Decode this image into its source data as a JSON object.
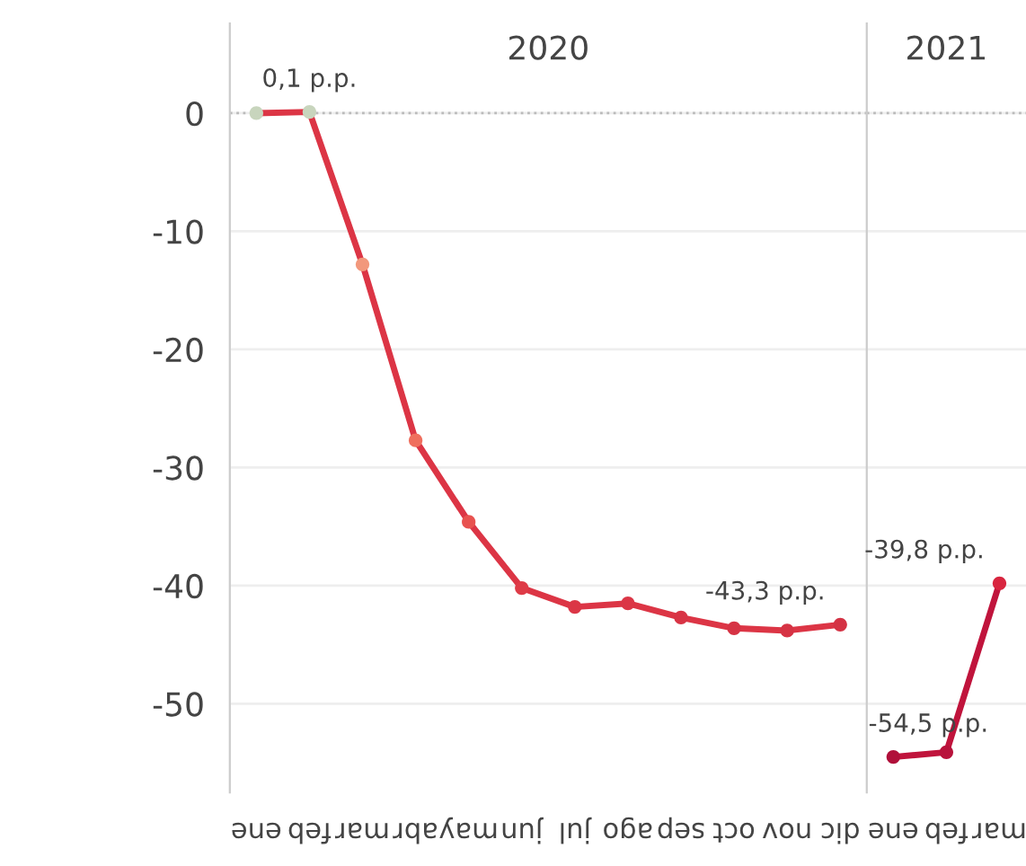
{
  "chart_data": [
    {
      "type": "line",
      "title": "2020",
      "categories": [
        "ene",
        "feb",
        "mar",
        "abr",
        "may",
        "jun",
        "jul",
        "ago",
        "sep",
        "oct",
        "nov",
        "dic"
      ],
      "series": [
        {
          "color": "#dc3545",
          "colors": [
            "#c8d5bd",
            "#c8d5bd",
            "#f2987c",
            "#ef6f5e",
            "#e8524f",
            "#de3b47",
            "#db3646",
            "#db3646",
            "#d83445",
            "#d63344",
            "#d63344",
            "#d43244"
          ],
          "values": [
            0.0,
            0.1,
            -12.8,
            -27.7,
            -34.6,
            -40.2,
            -41.8,
            -41.5,
            -42.7,
            -43.6,
            -43.8,
            -43.3
          ],
          "value_labels": [
            null,
            "0,1 p.p.",
            null,
            null,
            null,
            null,
            null,
            null,
            null,
            null,
            null,
            "-43,3 p.p."
          ]
        }
      ],
      "ylim": [
        -57.5,
        7.6
      ],
      "yticks": [
        0,
        -10,
        -20,
        -30,
        -40,
        -50
      ],
      "grid": "y",
      "ref_lines": [
        {
          "axis": "y",
          "value": 0,
          "color": "#bbbbbb",
          "line_style": "dotted"
        }
      ],
      "marker": "circle",
      "line_style": "solid"
    },
    {
      "type": "line",
      "title": "2021",
      "categories": [
        "ene",
        "feb",
        "mar"
      ],
      "series": [
        {
          "color": "#c0143c",
          "colors": [
            "#b0103a",
            "#b8123b",
            "#d8253f"
          ],
          "values": [
            -54.5,
            -54.1,
            -39.8
          ],
          "value_labels": [
            "-54,5 p.p.",
            null,
            "-39,8 p.p."
          ]
        }
      ],
      "ylim": [
        -57.5,
        7.6
      ],
      "yticks": [
        0,
        -10,
        -20,
        -30,
        -40,
        -50
      ],
      "tick_labels": "x",
      "grid": "y",
      "ref_lines": [
        {
          "axis": "y",
          "value": 0,
          "color": "#bbbbbb",
          "line_style": "dotted"
        }
      ],
      "marker": "circle",
      "line_style": "solid"
    }
  ]
}
